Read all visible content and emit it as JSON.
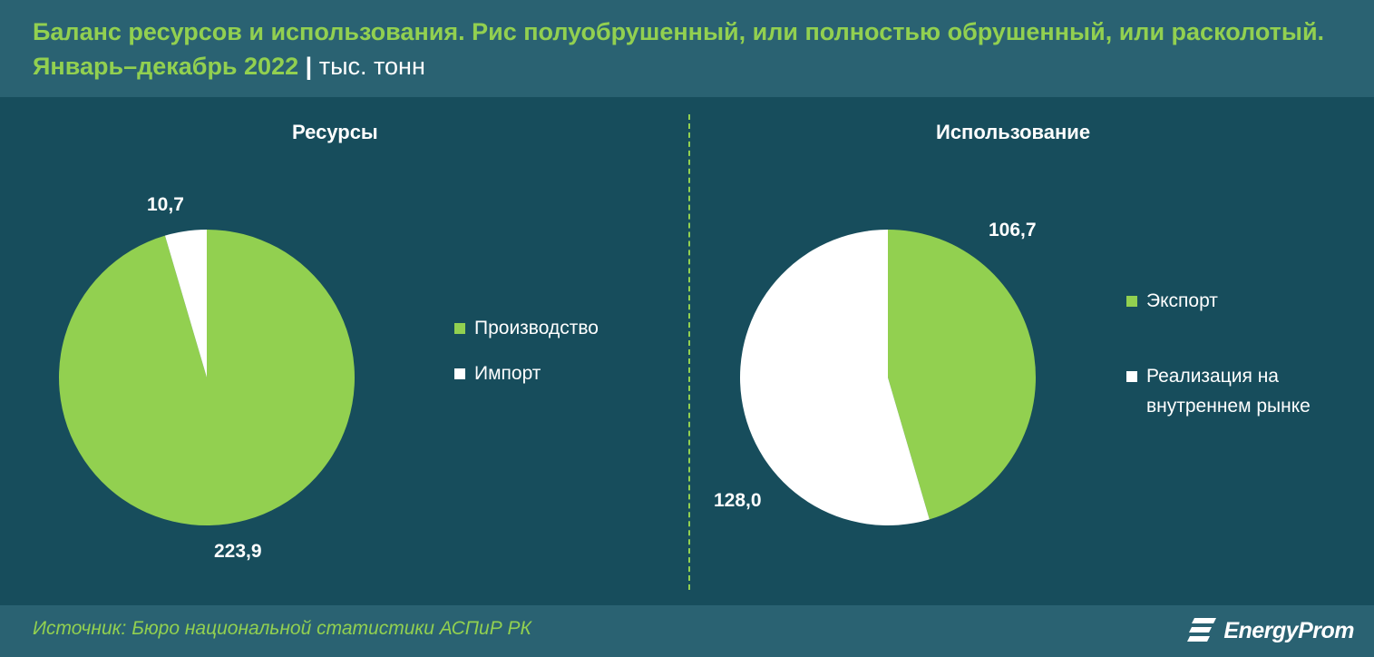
{
  "header": {
    "title": "Баланс ресурсов и использования. Рис полуобрушенный, или полностью обрушенный, или расколотый. Январь–декабрь 2022",
    "separator": "|",
    "unit": "тыс. тонн"
  },
  "colors": {
    "green": "#92d050",
    "white": "#ffffff",
    "background": "#174d5c"
  },
  "chart_data": [
    {
      "type": "pie",
      "title": "Ресурсы",
      "series": [
        {
          "name": "Производство",
          "value": 223.9,
          "label": "223,9",
          "color": "#92d050"
        },
        {
          "name": "Импорт",
          "value": 10.7,
          "label": "10,7",
          "color": "#ffffff"
        }
      ]
    },
    {
      "type": "pie",
      "title": "Использование",
      "series": [
        {
          "name": "Экспорт",
          "value": 106.7,
          "label": "106,7",
          "color": "#92d050"
        },
        {
          "name": "Реализация на внутреннем рынке",
          "value": 128.0,
          "label": "128,0",
          "color": "#ffffff"
        }
      ]
    }
  ],
  "footer": {
    "source": "Источник: Бюро национальной статистики АСПиР РК",
    "logo_text": "EnergyProm",
    "logo_icon": "energyprom-logo-icon"
  }
}
